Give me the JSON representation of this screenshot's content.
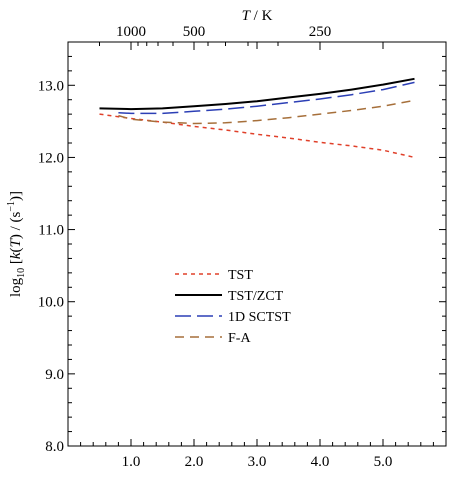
{
  "chart_data": {
    "type": "line",
    "xlabel": "",
    "ylabel": "log₁₀ [k(T) / (s⁻¹)]",
    "ylabel_parts": {
      "prefix": "log",
      "sub": "10",
      "open": " [",
      "k": "k",
      "T": "T",
      "unit_open": ") / (s",
      "sup": "−1",
      "close": ")]"
    },
    "top_axis_label": {
      "T": "T",
      "unit": " / K"
    },
    "xlim": [
      0,
      6
    ],
    "ylim": [
      8.0,
      13.6
    ],
    "x_ticks": [
      1.0,
      2.0,
      3.0,
      4.0,
      5.0
    ],
    "x_tick_labels": [
      "1.0",
      "2.0",
      "3.0",
      "4.0",
      "5.0"
    ],
    "y_ticks": [
      8.0,
      9.0,
      10.0,
      11.0,
      12.0,
      13.0
    ],
    "y_tick_labels": [
      "8.0",
      "9.0",
      "10.0",
      "11.0",
      "12.0",
      "13.0"
    ],
    "top_ticks": [
      1000,
      500,
      250
    ],
    "top_tick_labels": [
      "1000",
      "500",
      "250"
    ],
    "grid": false,
    "legend_position": "center-left",
    "series": [
      {
        "name": "TST",
        "color": "#e0402a",
        "dash": "short",
        "x": [
          0.5,
          1.0,
          1.5,
          2.0,
          2.5,
          3.0,
          3.5,
          4.0,
          4.5,
          5.0,
          5.5
        ],
        "y": [
          12.6,
          12.54,
          12.49,
          12.43,
          12.38,
          12.32,
          12.27,
          12.21,
          12.16,
          12.1,
          12.0
        ]
      },
      {
        "name": "TST/ZCT",
        "color": "#000000",
        "dash": "solid",
        "x": [
          0.5,
          1.0,
          1.5,
          2.0,
          2.5,
          3.0,
          3.5,
          4.0,
          4.5,
          5.0,
          5.5
        ],
        "y": [
          12.68,
          12.67,
          12.68,
          12.71,
          12.74,
          12.78,
          12.83,
          12.88,
          12.94,
          13.01,
          13.09
        ]
      },
      {
        "name": "1D SCTST",
        "color": "#2c3fb5",
        "dash": "long",
        "x": [
          0.8,
          1.0,
          1.5,
          2.0,
          2.5,
          3.0,
          3.5,
          4.0,
          4.5,
          5.0,
          5.5
        ],
        "y": [
          12.62,
          12.61,
          12.61,
          12.64,
          12.67,
          12.71,
          12.76,
          12.81,
          12.87,
          12.94,
          13.04
        ]
      },
      {
        "name": "F-A",
        "color": "#a66f3a",
        "dash": "medium",
        "x": [
          0.8,
          1.0,
          1.5,
          2.0,
          2.5,
          3.0,
          3.5,
          4.0,
          4.5,
          5.0,
          5.5
        ],
        "y": [
          12.58,
          12.53,
          12.49,
          12.47,
          12.48,
          12.51,
          12.55,
          12.6,
          12.65,
          12.71,
          12.79
        ]
      }
    ]
  }
}
